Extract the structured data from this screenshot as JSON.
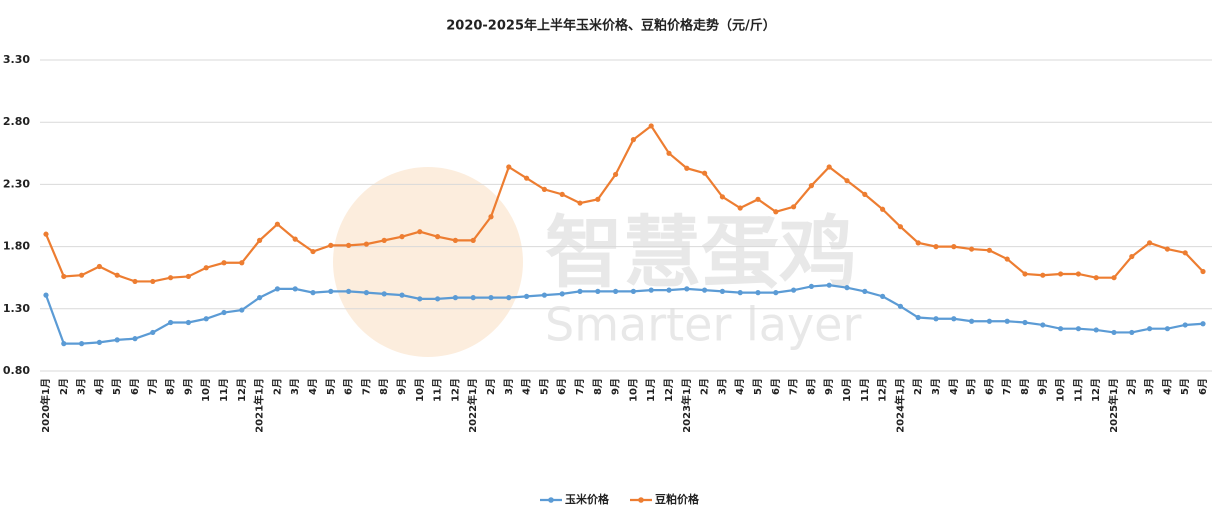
{
  "chart_data": {
    "type": "line",
    "title": "2020-2025年上半年玉米价格、豆粕价格走势（元/斤）",
    "watermark": [
      "智慧蛋鸡",
      "Smarter layer"
    ],
    "categories": [
      "2020年1月",
      "2月",
      "3月",
      "4月",
      "5月",
      "6月",
      "7月",
      "8月",
      "9月",
      "10月",
      "11月",
      "12月",
      "2021年1月",
      "2月",
      "3月",
      "4月",
      "5月",
      "6月",
      "7月",
      "8月",
      "9月",
      "10月",
      "11月",
      "12月",
      "2022年1月",
      "2月",
      "3月",
      "4月",
      "5月",
      "6月",
      "7月",
      "8月",
      "9月",
      "10月",
      "11月",
      "12月",
      "2023年1月",
      "2月",
      "3月",
      "4月",
      "5月",
      "6月",
      "7月",
      "8月",
      "9月",
      "10月",
      "11月",
      "12月",
      "2024年1月",
      "2月",
      "3月",
      "4月",
      "5月",
      "6月",
      "7月",
      "8月",
      "9月",
      "10月",
      "11月",
      "12月",
      "2025年1月",
      "2月",
      "3月",
      "4月",
      "5月",
      "6月"
    ],
    "series": [
      {
        "name": "玉米价格",
        "color": "#5b9bd5",
        "values": [
          1.41,
          1.02,
          1.02,
          1.03,
          1.05,
          1.06,
          1.11,
          1.19,
          1.19,
          1.22,
          1.27,
          1.29,
          1.39,
          1.46,
          1.46,
          1.43,
          1.44,
          1.44,
          1.43,
          1.42,
          1.41,
          1.38,
          1.38,
          1.39,
          1.39,
          1.39,
          1.39,
          1.4,
          1.41,
          1.42,
          1.44,
          1.44,
          1.44,
          1.44,
          1.45,
          1.45,
          1.46,
          1.45,
          1.44,
          1.43,
          1.43,
          1.43,
          1.45,
          1.48,
          1.49,
          1.47,
          1.44,
          1.4,
          1.32,
          1.23,
          1.22,
          1.22,
          1.2,
          1.2,
          1.2,
          1.19,
          1.17,
          1.14,
          1.14,
          1.13,
          1.11,
          1.11,
          1.14,
          1.14,
          1.17,
          1.18
        ]
      },
      {
        "name": "豆粕价格",
        "color": "#ed7d31",
        "values": [
          1.9,
          1.56,
          1.57,
          1.64,
          1.57,
          1.52,
          1.52,
          1.55,
          1.56,
          1.63,
          1.67,
          1.67,
          1.85,
          1.98,
          1.86,
          1.76,
          1.81,
          1.81,
          1.82,
          1.85,
          1.88,
          1.92,
          1.88,
          1.85,
          1.85,
          2.04,
          2.44,
          2.35,
          2.26,
          2.22,
          2.15,
          2.18,
          2.38,
          2.66,
          2.77,
          2.55,
          2.43,
          2.39,
          2.2,
          2.11,
          2.18,
          2.08,
          2.12,
          2.29,
          2.44,
          2.33,
          2.22,
          2.1,
          1.96,
          1.83,
          1.8,
          1.8,
          1.78,
          1.77,
          1.7,
          1.58,
          1.57,
          1.58,
          1.58,
          1.55,
          1.55,
          1.72,
          1.83,
          1.78,
          1.75,
          1.6
        ]
      }
    ],
    "ylim": [
      0.8,
      3.3
    ],
    "yticks": [
      {
        "value": 0.8,
        "label": "0.80"
      },
      {
        "value": 1.3,
        "label": "1.30"
      },
      {
        "value": 1.8,
        "label": "1.80"
      },
      {
        "value": 2.3,
        "label": "2.30"
      },
      {
        "value": 2.8,
        "label": "2.80"
      },
      {
        "value": 3.3,
        "label": "3.30"
      }
    ],
    "grid": true,
    "legend": "bottom"
  }
}
